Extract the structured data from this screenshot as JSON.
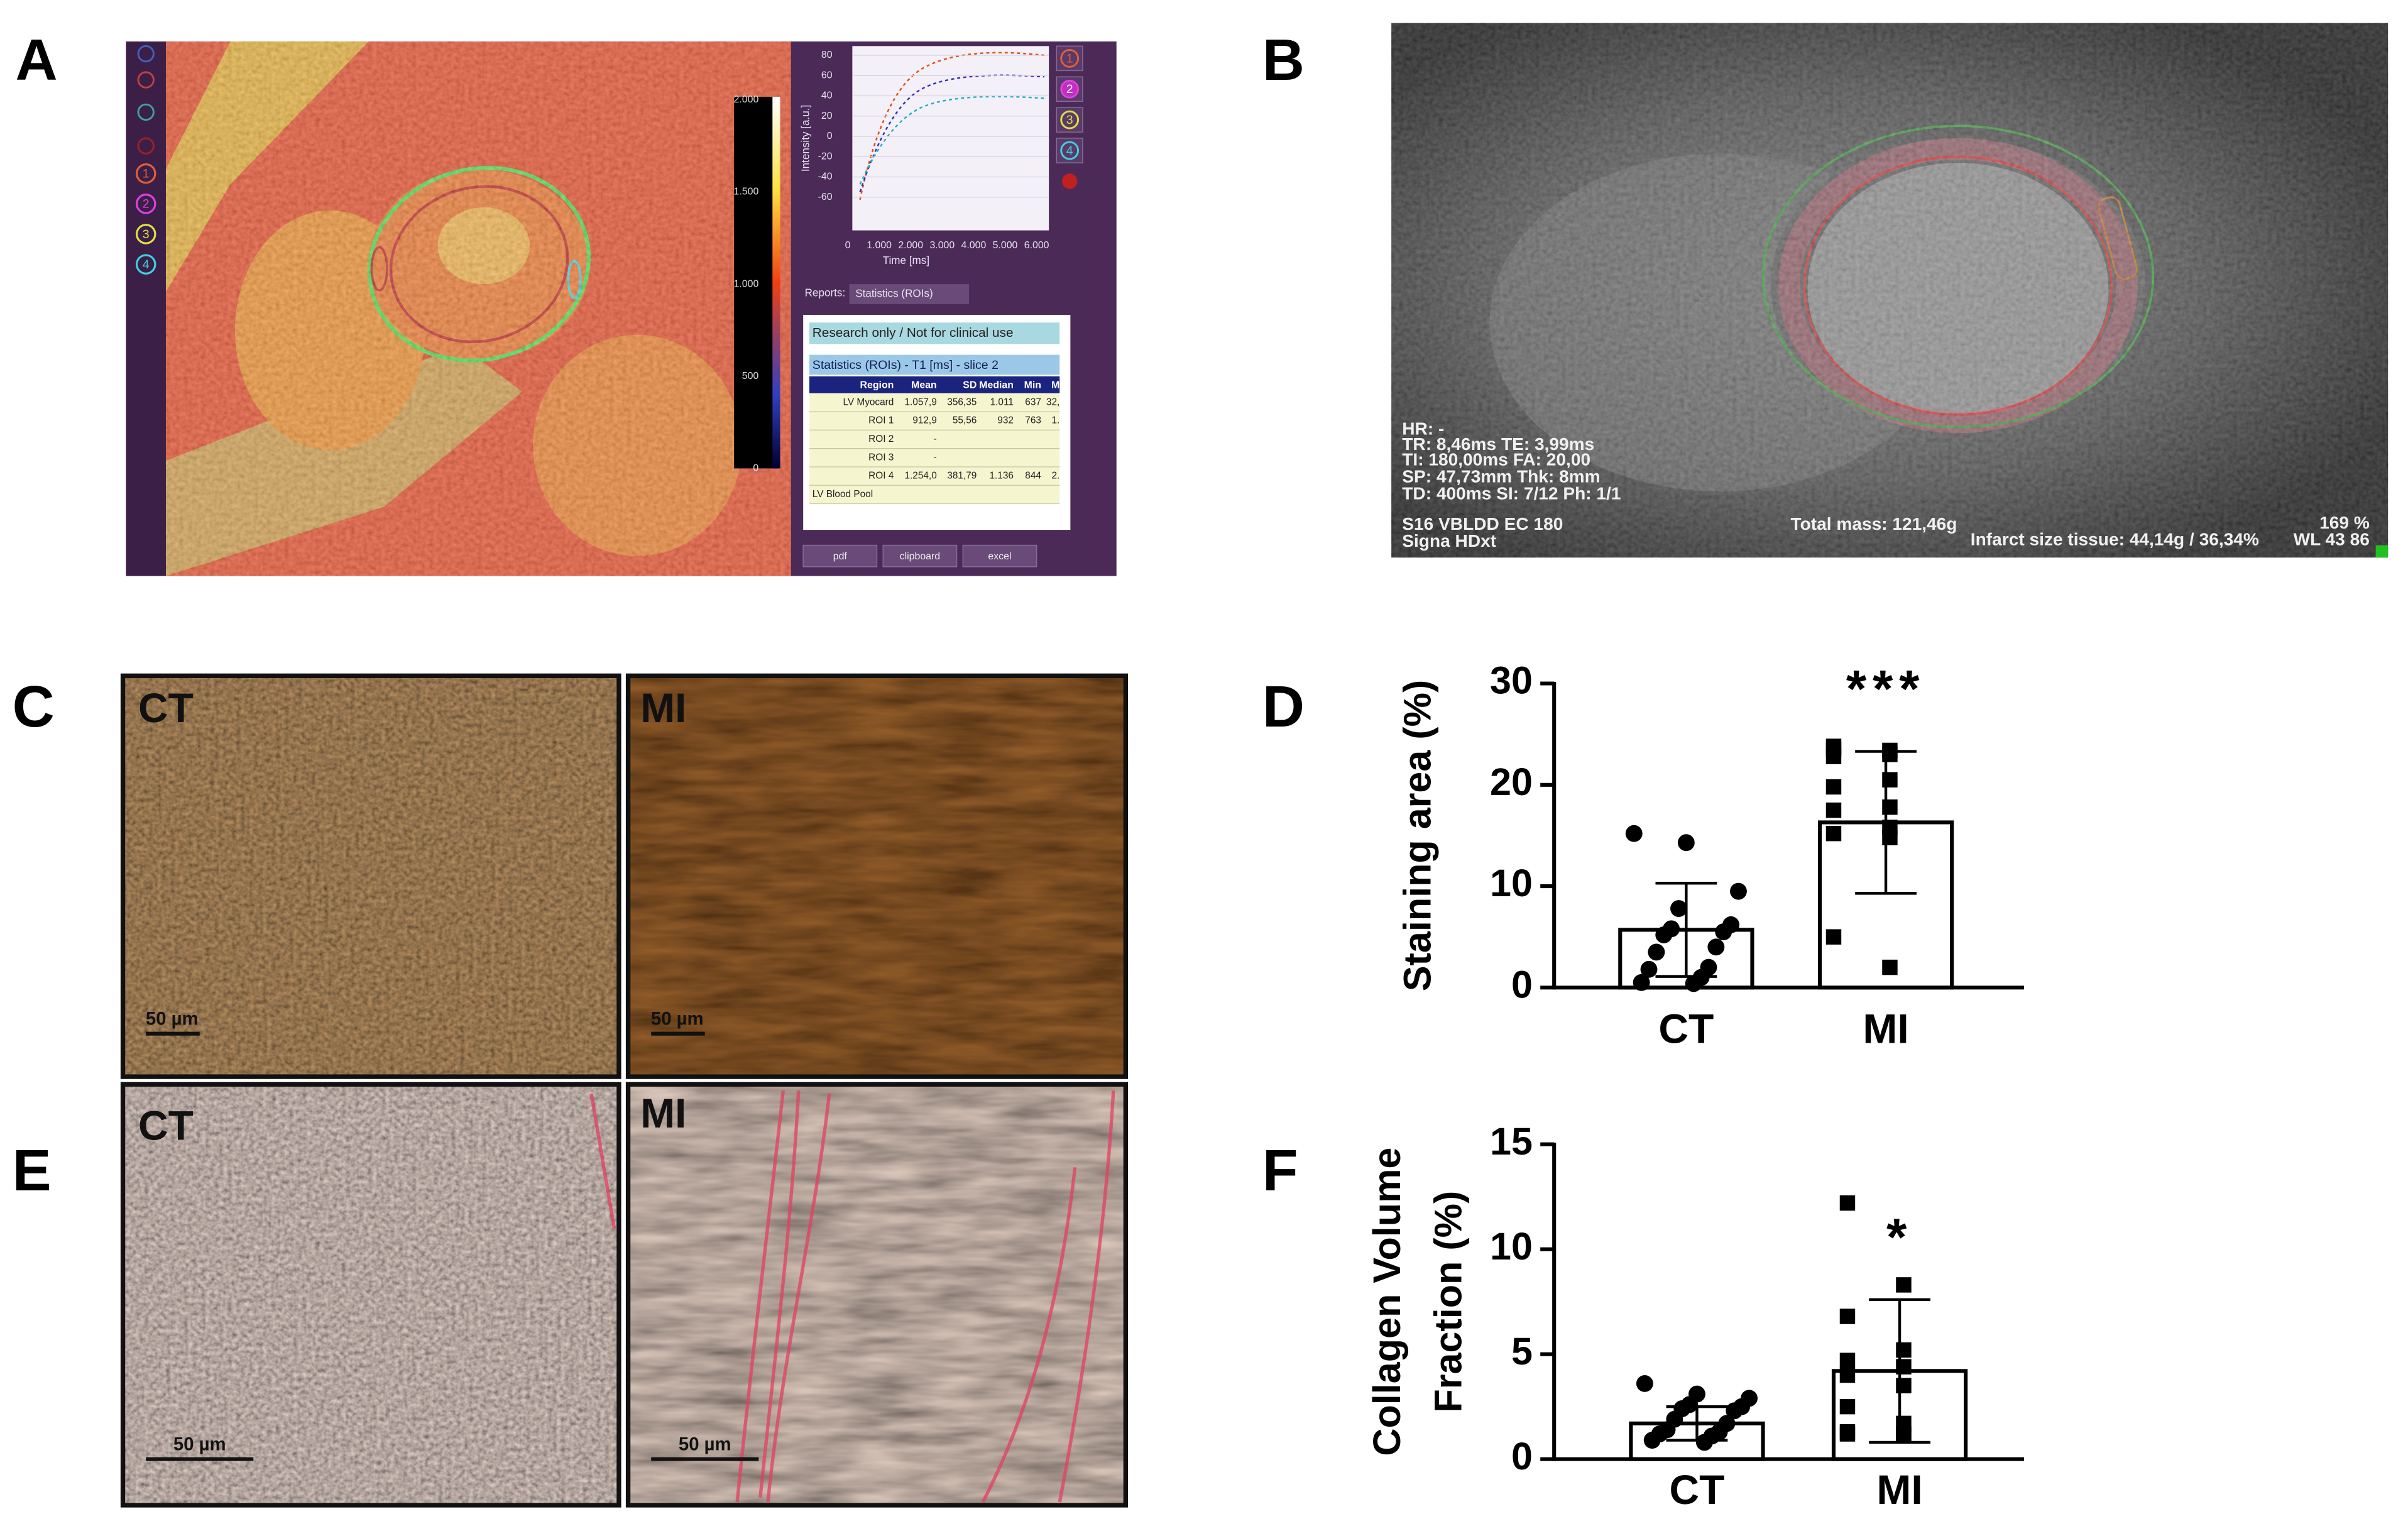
{
  "panels": {
    "a": "A",
    "b": "B",
    "c": "C",
    "d": "D",
    "e": "E",
    "f": "F"
  },
  "panel_a": {
    "toolbar": [
      "1",
      "2",
      "3",
      "4"
    ],
    "colorbar_labels": [
      "2.000",
      "1.500",
      "1.000",
      "500",
      "0"
    ],
    "plot": {
      "y_label": "Intensity [a.u.]",
      "x_label": "Time [ms]",
      "y_tick_labels": [
        "80",
        "60",
        "40",
        "20",
        "0",
        "-20",
        "-40",
        "-60"
      ],
      "x_tick_labels": [
        "0",
        "1.000",
        "2.000",
        "3.000",
        "4.000",
        "5.000",
        "6.000"
      ]
    },
    "side_buttons": [
      "1",
      "2",
      "3",
      "4"
    ],
    "reports_label": "Reports:",
    "reports_select": "Statistics (ROIs)",
    "notice": "Research only / Not for clinical use",
    "table_title": "Statistics (ROIs) - T1 [ms] - slice 2",
    "table_header": [
      "Region",
      "Mean",
      "SD",
      "Median",
      "Min",
      "M"
    ],
    "table_rows": [
      [
        "LV Myocard",
        "1.057,9",
        "356,35",
        "1.011",
        "637",
        "32,"
      ],
      [
        "ROI 1",
        "912,9",
        "55,56",
        "932",
        "763",
        "1."
      ],
      [
        "ROI 2",
        "-"
      ],
      [
        "ROI 3",
        "-"
      ],
      [
        "ROI 4",
        "1.254,0",
        "381,79",
        "1.136",
        "844",
        "2."
      ],
      [
        "LV Blood Pool"
      ]
    ],
    "buttons": [
      "pdf",
      "clipboard",
      "excel"
    ]
  },
  "panel_b": {
    "info": [
      "HR: -",
      "TR: 8,46ms TE: 3,99ms",
      "TI: 180,00ms FA: 20,00",
      "SP: 47,73mm Thk: 8mm",
      "TD: 400ms SI: 7/12 Ph: 1/1"
    ],
    "sequence": [
      "S16 VBLDD EC 180",
      "Signa HDxt"
    ],
    "total_mass": "Total mass: 121,46g",
    "infarct": "Infarct size tissue: 44,14g / 36,34%",
    "zoom": "169 %",
    "window": "WL 43 86"
  },
  "histology": {
    "c_ct": {
      "label": "CT",
      "scale": "50 µm"
    },
    "c_mi": {
      "label": "MI",
      "scale": "50 µm"
    },
    "e_ct": {
      "label": "CT",
      "scale": "50 µm"
    },
    "e_mi": {
      "label": "MI",
      "scale": "50 µm"
    }
  },
  "chart_data": [
    {
      "type": "bar",
      "ylabel": "Staining area (%)",
      "categories": [
        "CT",
        "MI"
      ],
      "values": [
        5.7,
        16.3
      ],
      "errors": [
        4.6,
        7.0
      ],
      "points": [
        [
          15.2,
          14.3,
          9.5,
          7.8,
          6.2,
          5.8,
          5.5,
          5.2,
          4.0,
          3.5,
          2.0,
          1.8,
          1.0,
          0.5,
          0.4
        ],
        [
          23.8,
          23.4,
          23.5,
          23.0,
          22.8,
          20.5,
          19.8,
          17.8,
          17.5,
          15.8,
          15.2,
          14.8,
          5.0,
          2.0
        ]
      ],
      "markers": [
        "circle",
        "square"
      ],
      "significance": [
        null,
        "***"
      ],
      "ylim": [
        0,
        30
      ],
      "yticks": [
        0,
        10,
        20,
        30
      ],
      "color": "#ffffff"
    },
    {
      "type": "bar",
      "ylabel": [
        "Collagen Volume",
        "Fraction (%)"
      ],
      "categories": [
        "CT",
        "MI"
      ],
      "values": [
        1.7,
        4.2
      ],
      "errors": [
        0.8,
        3.4
      ],
      "points": [
        [
          3.6,
          3.1,
          2.9,
          2.6,
          2.5,
          2.4,
          2.3,
          1.9,
          1.7,
          1.4,
          1.3,
          1.2,
          1.1,
          0.9,
          0.8
        ],
        [
          12.2,
          8.3,
          6.8,
          5.2,
          4.7,
          4.4,
          4.0,
          3.5,
          2.5,
          1.7,
          1.3,
          1.2,
          1.2,
          1.1
        ]
      ],
      "markers": [
        "circle",
        "square"
      ],
      "significance": [
        null,
        "*"
      ],
      "ylim": [
        0,
        15
      ],
      "yticks": [
        0,
        5,
        10,
        15
      ],
      "color": "#ffffff"
    }
  ]
}
